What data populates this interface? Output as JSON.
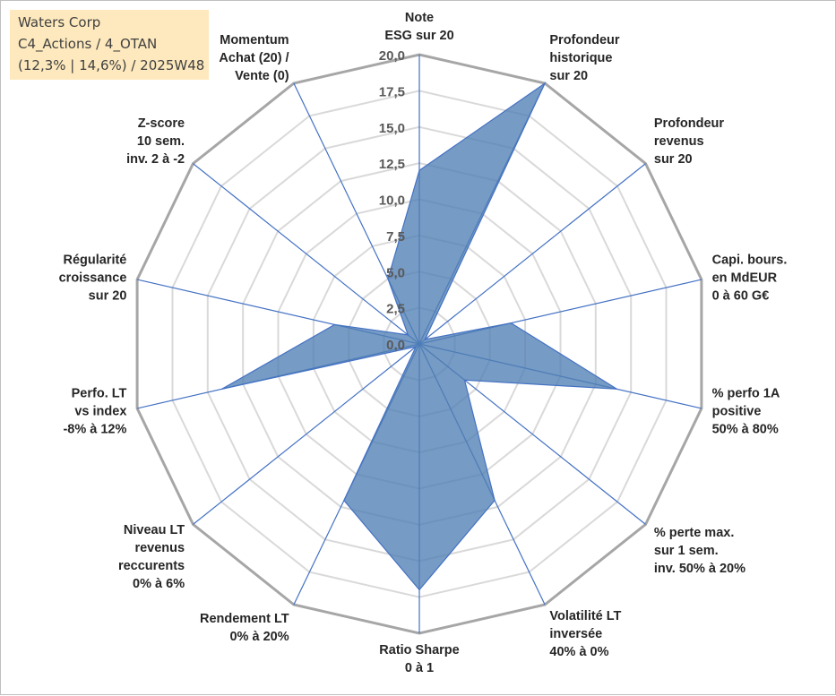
{
  "info": {
    "company": "Waters Corp",
    "portfolio": "C4_Actions / 4_OTAN",
    "stats": "(12,3% | 14,6%) / 2025W48"
  },
  "chart_data": {
    "type": "radar",
    "title": "",
    "rmin": 0,
    "rmax": 20,
    "rstep": 2.5,
    "tick_labels": [
      "0,0",
      "2,5",
      "5,0",
      "7,5",
      "10,0",
      "12,5",
      "15,0",
      "17,5",
      "20,0"
    ],
    "axes": [
      {
        "label": "Note\nESG sur 20",
        "value": 12.0
      },
      {
        "label": "Profondeur\nhistorique\nsur 20",
        "value": 20.0
      },
      {
        "label": "Profondeur\nrevenus\nsur 20",
        "value": 0.5
      },
      {
        "label": "Capi. bours.\nen MdEUR\n0 à 60 G€",
        "value": 6.5
      },
      {
        "label": "% perfo 1A\npositive\n50% à 80%",
        "value": 14.0
      },
      {
        "label": "% perte max.\nsur 1 sem.\ninv. 50% à 20%",
        "value": 4.0
      },
      {
        "label": "Volatilité LT\ninversée\n40% à 0%",
        "value": 12.0
      },
      {
        "label": "Ratio Sharpe\n0 à 1",
        "value": 17.0
      },
      {
        "label": "Rendement LT\n0% à 20%",
        "value": 12.0
      },
      {
        "label": "Niveau LT\nrevenus\nreccurents\n0% à 6%",
        "value": 0.3
      },
      {
        "label": "Perfo. LT\nvs index\n-8% à 12%",
        "value": 14.0
      },
      {
        "label": "Régularité\ncroissance\nsur 20",
        "value": 6.0
      },
      {
        "label": "Z-score\n10 sem.\ninv. 2 à -2",
        "value": 1.0
      },
      {
        "label": "Momentum\nAchat (20) /\nVente (0)",
        "value": 5.0
      }
    ],
    "series": [
      {
        "name": "Waters Corp",
        "color": "#4f81bd"
      }
    ],
    "colors": {
      "fill": "#4f7fb3",
      "line": "#4472c4",
      "grid": "#bfbfbf",
      "spoke": "#4472c4"
    }
  }
}
